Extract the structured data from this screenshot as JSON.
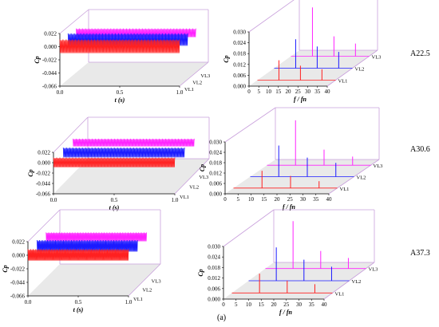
{
  "figure": {
    "caption": "(a)",
    "rows": [
      {
        "label": "A22.5"
      },
      {
        "label": "A30.6"
      },
      {
        "label": "A37.3"
      }
    ]
  },
  "colors": {
    "VL1": "#ff2020",
    "VL2": "#1a1aff",
    "VL3": "#ff22ff",
    "box": "#c9a0dc",
    "floor": "#e9e9e9"
  },
  "chart_data": [
    {
      "type": "line",
      "panel": "time-A22.5",
      "xlabel": "t (s)",
      "ylabel": "Cp",
      "xlim": [
        0,
        1.0
      ],
      "ylim": [
        -0.066,
        0.022
      ],
      "xticks": [
        "0.0",
        "0.5",
        "1.0"
      ],
      "yticks": [
        "0.022",
        "0.000",
        "-0.022",
        "-0.044",
        "-0.066"
      ],
      "series": [
        {
          "name": "VL1",
          "baseline": 0.0,
          "amplitude": 0.011,
          "cycles": 38
        },
        {
          "name": "VL2",
          "baseline": 0.0,
          "amplitude": 0.01,
          "cycles": 38
        },
        {
          "name": "VL3",
          "baseline": 0.0,
          "amplitude": 0.007,
          "cycles": 38
        }
      ]
    },
    {
      "type": "line",
      "panel": "spectrum-A22.5",
      "xlabel": "f / fn",
      "ylabel": "Cp",
      "xlim": [
        0,
        40
      ],
      "ylim": [
        0,
        0.03
      ],
      "xticks": [
        "0",
        "5",
        "10",
        "15",
        "20",
        "25",
        "30",
        "35",
        "40"
      ],
      "yticks": [
        "0.000",
        "0.006",
        "0.012",
        "0.018",
        "0.024",
        "0.030"
      ],
      "series": [
        {
          "name": "VL1",
          "peaks": [
            [
              11,
              0.011
            ],
            [
              22,
              0.008
            ],
            [
              33,
              0.006
            ]
          ]
        },
        {
          "name": "VL2",
          "peaks": [
            [
              11,
              0.016
            ],
            [
              22,
              0.012
            ],
            [
              33,
              0.009
            ]
          ]
        },
        {
          "name": "VL3",
          "peaks": [
            [
              11,
              0.027
            ],
            [
              22,
              0.011
            ],
            [
              33,
              0.007
            ]
          ]
        }
      ]
    },
    {
      "type": "line",
      "panel": "time-A30.6",
      "xlabel": "t (s)",
      "ylabel": "Cp",
      "xlim": [
        0,
        1.0
      ],
      "ylim": [
        -0.066,
        0.022
      ],
      "xticks": [
        "0.0",
        "0.5",
        "1.0"
      ],
      "yticks": [
        "0.022",
        "0.000",
        "-0.022",
        "-0.044",
        "-0.066"
      ],
      "series": [
        {
          "name": "VL1",
          "baseline": 0.0,
          "amplitude": 0.01,
          "cycles": 38
        },
        {
          "name": "VL2",
          "baseline": 0.0,
          "amplitude": 0.01,
          "cycles": 38
        },
        {
          "name": "VL3",
          "baseline": 0.0,
          "amplitude": 0.008,
          "cycles": 38
        }
      ]
    },
    {
      "type": "line",
      "panel": "spectrum-A30.6",
      "xlabel": "f / fn",
      "ylabel": "Cp",
      "xlim": [
        0,
        40
      ],
      "ylim": [
        0,
        0.03
      ],
      "xticks": [
        "0",
        "5",
        "10",
        "15",
        "20",
        "25",
        "30",
        "35",
        "40"
      ],
      "yticks": [
        "0.000",
        "0.006",
        "0.012",
        "0.018",
        "0.024",
        "0.030"
      ],
      "series": [
        {
          "name": "VL1",
          "peaks": [
            [
              11,
              0.01
            ],
            [
              22,
              0.007
            ],
            [
              33,
              0.004
            ]
          ]
        },
        {
          "name": "VL2",
          "peaks": [
            [
              11,
              0.018
            ],
            [
              22,
              0.011
            ],
            [
              33,
              0.008
            ]
          ]
        },
        {
          "name": "VL3",
          "peaks": [
            [
              11,
              0.026
            ],
            [
              22,
              0.009
            ],
            [
              33,
              0.005
            ]
          ]
        }
      ]
    },
    {
      "type": "line",
      "panel": "time-A37.3",
      "xlabel": "t (s)",
      "ylabel": "Cp",
      "xlim": [
        0,
        1.0
      ],
      "ylim": [
        -0.066,
        0.022
      ],
      "xticks": [
        "0.0",
        "0.5",
        "1.0"
      ],
      "yticks": [
        "0.022",
        "0.000",
        "-0.022",
        "-0.044",
        "-0.066"
      ],
      "series": [
        {
          "name": "VL1",
          "baseline": 0.0,
          "amplitude": 0.009,
          "cycles": 38
        },
        {
          "name": "VL2",
          "baseline": 0.0,
          "amplitude": 0.009,
          "cycles": 38
        },
        {
          "name": "VL3",
          "baseline": 0.0,
          "amplitude": 0.007,
          "cycles": 38
        }
      ]
    },
    {
      "type": "line",
      "panel": "spectrum-A37.3",
      "xlabel": "f / fn",
      "ylabel": "Cp",
      "xlim": [
        0,
        40
      ],
      "ylim": [
        0,
        0.03
      ],
      "xticks": [
        "0",
        "5",
        "10",
        "15",
        "20",
        "25",
        "30",
        "35",
        "40"
      ],
      "yticks": [
        "0.000",
        "0.006",
        "0.012",
        "0.018",
        "0.024",
        "0.030"
      ],
      "series": [
        {
          "name": "VL1",
          "peaks": [
            [
              11,
              0.011
            ],
            [
              22,
              0.007
            ],
            [
              33,
              0.005
            ]
          ]
        },
        {
          "name": "VL2",
          "peaks": [
            [
              11,
              0.019
            ],
            [
              22,
              0.012
            ],
            [
              33,
              0.008
            ]
          ]
        },
        {
          "name": "VL3",
          "peaks": [
            [
              11,
              0.027
            ],
            [
              22,
              0.01
            ],
            [
              33,
              0.006
            ]
          ]
        }
      ]
    }
  ]
}
